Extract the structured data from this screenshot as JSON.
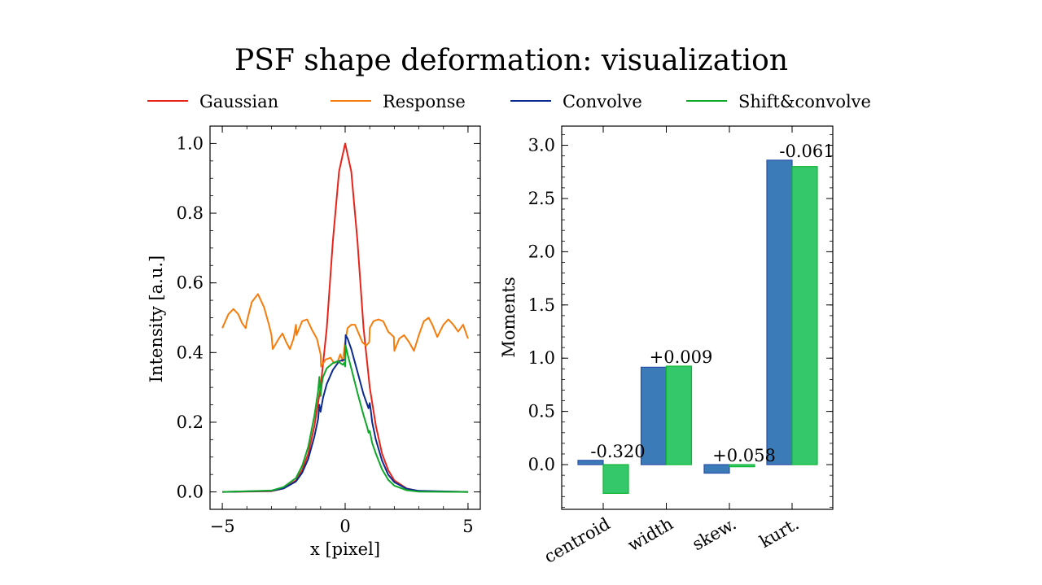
{
  "title": "PSF shape deformation: visualization",
  "colors": {
    "gaussian": "#e8231a",
    "response": "#f57d0d",
    "convolve": "#0b2a8f",
    "shift_convolve": "#0fa82a",
    "bar_blue_fill": "#3b7bb8",
    "bar_blue_edge": "#2a4fa8",
    "bar_green_fill": "#34c86a",
    "bar_green_edge": "#10b535"
  },
  "chart_data": [
    {
      "type": "line",
      "xlabel": "x [pixel]",
      "ylabel": "Intensity [a.u.]",
      "xlim": [
        -5.5,
        5.5
      ],
      "ylim": [
        -0.05,
        1.05
      ],
      "xticks": [
        -5,
        0,
        5
      ],
      "xtick_labels": [
        "−5",
        "0",
        "5"
      ],
      "yticks": [
        0.0,
        0.2,
        0.4,
        0.6,
        0.8,
        1.0
      ],
      "ytick_labels": [
        "0.0",
        "0.2",
        "0.4",
        "0.6",
        "0.8",
        "1.0"
      ],
      "legend_placement": "top-center, outside, 4 columns",
      "series": [
        {
          "name": "Gaussian",
          "color_key": "gaussian",
          "x": [
            -5,
            -3,
            -2.5,
            -2,
            -1.75,
            -1.5,
            -1.25,
            -1,
            -0.75,
            -0.5,
            -0.25,
            0,
            0.25,
            0.5,
            0.75,
            1,
            1.25,
            1.5,
            1.75,
            2,
            2.5,
            3,
            5
          ],
          "y": [
            0.0,
            0.002,
            0.01,
            0.033,
            0.063,
            0.11,
            0.19,
            0.3,
            0.47,
            0.72,
            0.92,
            1.0,
            0.92,
            0.72,
            0.47,
            0.3,
            0.19,
            0.11,
            0.063,
            0.033,
            0.01,
            0.002,
            0.0
          ]
        },
        {
          "name": "Response",
          "color_key": "response",
          "x": [
            -5,
            -4.75,
            -4.55,
            -4.35,
            -4.2,
            -4.05,
            -4.0,
            -3.8,
            -3.55,
            -3.3,
            -3.1,
            -3.0,
            -2.95,
            -2.7,
            -2.55,
            -2.4,
            -2.25,
            -2.1,
            -2.0,
            -1.98,
            -1.75,
            -1.55,
            -1.35,
            -1.15,
            -1.0,
            -0.98,
            -0.8,
            -0.6,
            -0.45,
            -0.3,
            -0.2,
            -0.1,
            0.0,
            0.1,
            0.25,
            0.4,
            0.55,
            0.7,
            0.85,
            0.98,
            1.0,
            1.15,
            1.35,
            1.55,
            1.75,
            1.98,
            2.0,
            2.2,
            2.4,
            2.6,
            2.8,
            3.0,
            3.2,
            3.4,
            3.55,
            3.75,
            4.0,
            4.2,
            4.4,
            4.6,
            4.8,
            5.0
          ],
          "y": [
            0.47,
            0.51,
            0.525,
            0.51,
            0.485,
            0.47,
            0.49,
            0.545,
            0.568,
            0.53,
            0.48,
            0.45,
            0.41,
            0.44,
            0.455,
            0.43,
            0.41,
            0.44,
            0.48,
            0.45,
            0.49,
            0.495,
            0.465,
            0.44,
            0.395,
            0.36,
            0.38,
            0.385,
            0.37,
            0.375,
            0.395,
            0.375,
            0.43,
            0.47,
            0.48,
            0.48,
            0.455,
            0.43,
            0.42,
            0.43,
            0.47,
            0.49,
            0.495,
            0.49,
            0.46,
            0.445,
            0.405,
            0.44,
            0.45,
            0.43,
            0.405,
            0.45,
            0.49,
            0.5,
            0.48,
            0.445,
            0.48,
            0.495,
            0.48,
            0.46,
            0.48,
            0.44
          ]
        },
        {
          "name": "Convolve",
          "color_key": "convolve",
          "x": [
            -5,
            -3,
            -2.5,
            -2,
            -1.75,
            -1.5,
            -1.25,
            -1.1,
            -1.05,
            -1.0,
            -0.95,
            -0.9,
            -0.75,
            -0.5,
            -0.25,
            0.0,
            0.02,
            0.1,
            0.25,
            0.5,
            0.75,
            0.9,
            0.95,
            1.0,
            1.05,
            1.1,
            1.25,
            1.5,
            1.75,
            2.0,
            2.5,
            3.0,
            5.0
          ],
          "y": [
            0.0,
            0.003,
            0.01,
            0.03,
            0.055,
            0.095,
            0.16,
            0.21,
            0.25,
            0.23,
            0.25,
            0.27,
            0.31,
            0.35,
            0.375,
            0.38,
            0.45,
            0.44,
            0.41,
            0.345,
            0.28,
            0.25,
            0.24,
            0.255,
            0.23,
            0.2,
            0.15,
            0.09,
            0.05,
            0.028,
            0.009,
            0.003,
            0.0
          ]
        },
        {
          "name": "Shift&convolve",
          "color_key": "shift_convolve",
          "x": [
            -5,
            -3,
            -2.5,
            -2,
            -1.75,
            -1.5,
            -1.25,
            -1.1,
            -1.05,
            -1.0,
            -0.95,
            -0.9,
            -0.75,
            -0.5,
            -0.3,
            -0.1,
            -0.05,
            0.0,
            0.02,
            0.1,
            0.25,
            0.5,
            0.75,
            0.9,
            0.95,
            1.0,
            1.1,
            1.25,
            1.5,
            1.75,
            2.0,
            2.5,
            3.0,
            5.0
          ],
          "y": [
            0.0,
            0.004,
            0.014,
            0.04,
            0.075,
            0.13,
            0.22,
            0.29,
            0.33,
            0.275,
            0.31,
            0.33,
            0.355,
            0.37,
            0.375,
            0.365,
            0.37,
            0.36,
            0.42,
            0.395,
            0.355,
            0.285,
            0.22,
            0.185,
            0.17,
            0.175,
            0.14,
            0.11,
            0.065,
            0.035,
            0.018,
            0.005,
            0.001,
            0.0
          ]
        }
      ]
    },
    {
      "type": "bar",
      "ylabel": "Moments",
      "categories": [
        "centroid",
        "width",
        "skew.",
        "kurt."
      ],
      "ylim": [
        -0.42,
        3.18
      ],
      "yticks": [
        0.0,
        0.5,
        1.0,
        1.5,
        2.0,
        2.5,
        3.0
      ],
      "ytick_labels": [
        "0.0",
        "0.5",
        "1.0",
        "1.5",
        "2.0",
        "2.5",
        "3.0"
      ],
      "series": [
        {
          "color_key": "bar_blue",
          "values": [
            0.04,
            0.915,
            -0.08,
            2.86
          ]
        },
        {
          "color_key": "bar_green",
          "values": [
            -0.27,
            0.925,
            -0.02,
            2.8
          ]
        }
      ],
      "bar_labels": [
        "-0.320",
        "+0.009",
        "+0.058",
        "-0.061"
      ]
    }
  ]
}
